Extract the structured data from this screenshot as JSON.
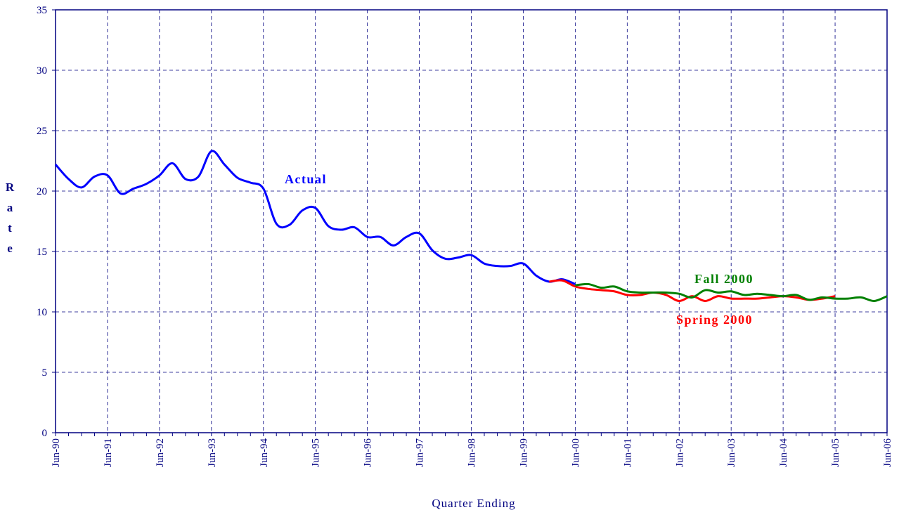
{
  "chart_data": {
    "type": "line",
    "x_label": "Quarter Ending",
    "y_label": "Rate",
    "categories": [
      "Jun-90",
      null,
      null,
      null,
      "Jun-91",
      null,
      null,
      null,
      "Jun-92",
      null,
      null,
      null,
      "Jun-93",
      null,
      null,
      null,
      "Jun-94",
      null,
      null,
      null,
      "Jun-95",
      null,
      null,
      null,
      "Jun-96",
      null,
      null,
      null,
      "Jun-97",
      null,
      null,
      null,
      "Jun-98",
      null,
      null,
      null,
      "Jun-99",
      null,
      null,
      null,
      "Jun-00",
      null,
      null,
      null,
      "Jun-01",
      null,
      null,
      null,
      "Jun-02",
      null,
      null,
      null,
      "Jun-03",
      null,
      null,
      null,
      "Jun-04",
      null,
      null,
      null,
      "Jun-05",
      null,
      null,
      null,
      "Jun-06"
    ],
    "series": [
      {
        "name": "Actual",
        "color": "#0000ff",
        "values": [
          22.2,
          21.0,
          20.3,
          21.2,
          21.3,
          19.8,
          20.2,
          20.6,
          21.3,
          22.3,
          21.0,
          21.2,
          23.3,
          22.2,
          21.1,
          20.7,
          20.2,
          17.3,
          17.2,
          18.4,
          18.6,
          17.1,
          16.8,
          17.0,
          16.2,
          16.2,
          15.5,
          16.2,
          16.5,
          15.1,
          14.4,
          14.5,
          14.7,
          14.0,
          13.8,
          13.8,
          14.0,
          13.0,
          12.5,
          12.7,
          12.3,
          null,
          null,
          null,
          null,
          null,
          null,
          null,
          null,
          null,
          null,
          null,
          null,
          null,
          null,
          null,
          null,
          null,
          null,
          null,
          null,
          null,
          null,
          null,
          null
        ]
      },
      {
        "name": "Spring 2000",
        "color": "#ff0000",
        "values": [
          null,
          null,
          null,
          null,
          null,
          null,
          null,
          null,
          null,
          null,
          null,
          null,
          null,
          null,
          null,
          null,
          null,
          null,
          null,
          null,
          null,
          null,
          null,
          null,
          null,
          null,
          null,
          null,
          null,
          null,
          null,
          null,
          null,
          null,
          null,
          null,
          null,
          null,
          12.5,
          12.6,
          12.1,
          11.9,
          11.8,
          11.7,
          11.4,
          11.4,
          11.6,
          11.4,
          10.9,
          11.3,
          10.9,
          11.3,
          11.1,
          11.1,
          11.1,
          11.2,
          11.3,
          11.2,
          11.0,
          11.1,
          11.3,
          null,
          null,
          null,
          null
        ]
      },
      {
        "name": "Fall 2000",
        "color": "#008000",
        "values": [
          null,
          null,
          null,
          null,
          null,
          null,
          null,
          null,
          null,
          null,
          null,
          null,
          null,
          null,
          null,
          null,
          null,
          null,
          null,
          null,
          null,
          null,
          null,
          null,
          null,
          null,
          null,
          null,
          null,
          null,
          null,
          null,
          null,
          null,
          null,
          null,
          null,
          null,
          null,
          null,
          12.2,
          12.3,
          12.0,
          12.1,
          11.7,
          11.6,
          11.6,
          11.6,
          11.5,
          11.2,
          11.8,
          11.6,
          11.7,
          11.4,
          11.5,
          11.4,
          11.3,
          11.4,
          11.0,
          11.2,
          11.1,
          11.1,
          11.2,
          10.9,
          11.3
        ]
      }
    ],
    "ylim": [
      0,
      35
    ],
    "yticks": [
      0,
      5,
      10,
      15,
      20,
      25,
      30,
      35
    ],
    "grid": true
  }
}
